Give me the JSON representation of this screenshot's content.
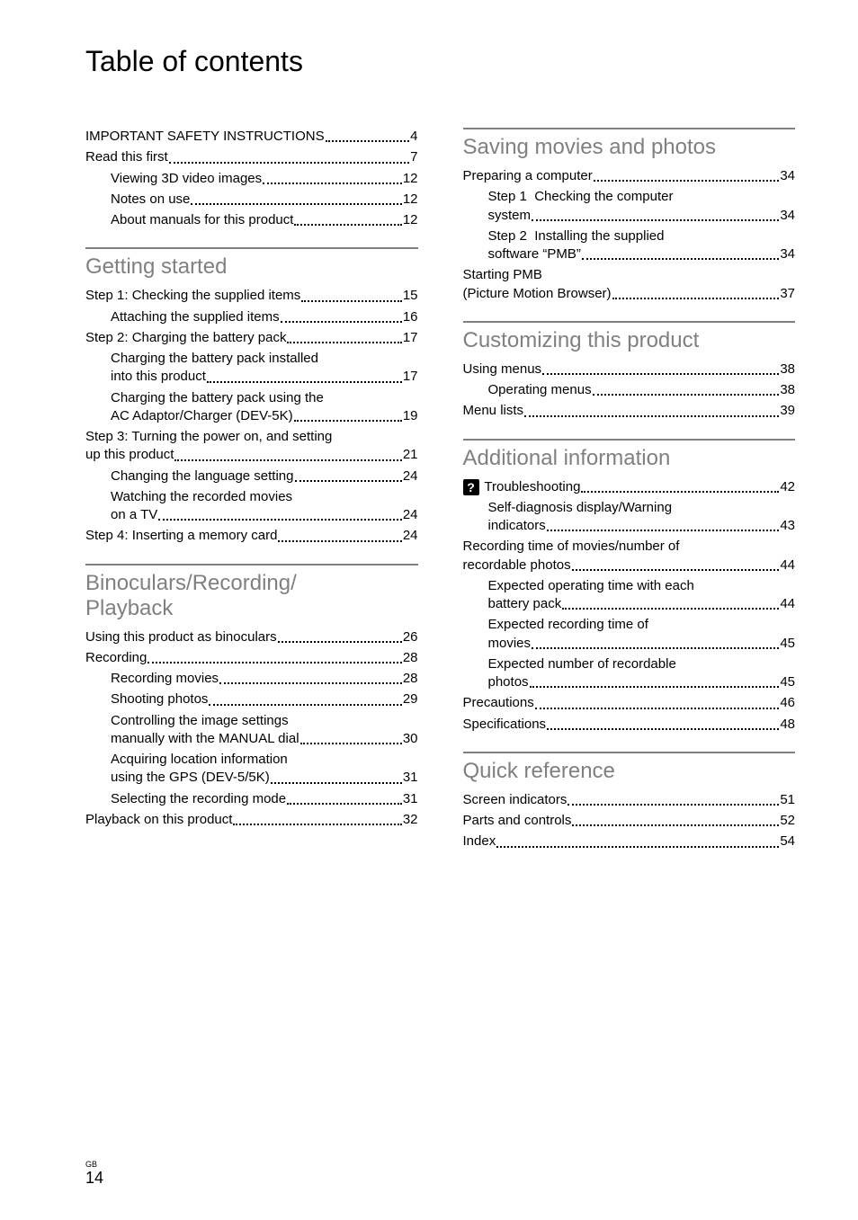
{
  "title": "Table of contents",
  "footer": {
    "label": "GB",
    "page": "14"
  },
  "col_left": {
    "top_entries": [
      {
        "label": "IMPORTANT SAFETY INSTRUCTIONS",
        "page": "4",
        "indent": 0
      },
      {
        "label": "Read this first",
        "page": "7",
        "indent": 0
      },
      {
        "label": "Viewing 3D video images",
        "page": "12",
        "indent": 1
      },
      {
        "label": "Notes on use",
        "page": "12",
        "indent": 1
      },
      {
        "label": "About manuals for this product",
        "page": "12",
        "indent": 1
      }
    ],
    "sections": [
      {
        "heading": "Getting started",
        "entries": [
          {
            "type": "single",
            "label": "Step 1: Checking the supplied items",
            "page": "15",
            "indent": 0
          },
          {
            "type": "single",
            "label": "Attaching the supplied items",
            "page": "16",
            "indent": 1
          },
          {
            "type": "single",
            "label": "Step 2: Charging the battery pack",
            "page": "17",
            "indent": 0
          },
          {
            "type": "multi",
            "line1": "Charging the battery pack installed",
            "label": "into this product",
            "page": "17",
            "indent": 1
          },
          {
            "type": "multi",
            "line1": "Charging the battery pack using the",
            "label": "AC Adaptor/Charger (DEV-5K)",
            "page": "19",
            "indent": 1
          },
          {
            "type": "multi",
            "line1": "Step 3: Turning the power on, and setting",
            "label": "up this product",
            "page": "21",
            "indent": 0
          },
          {
            "type": "single",
            "label": "Changing the language setting",
            "page": "24",
            "indent": 1
          },
          {
            "type": "multi",
            "line1": "Watching the recorded movies",
            "label": "on a TV",
            "page": "24",
            "indent": 1
          },
          {
            "type": "single",
            "label": "Step 4: Inserting a memory card",
            "page": "24",
            "indent": 0
          }
        ]
      },
      {
        "heading": "Binoculars/Recording/ Playback",
        "entries": [
          {
            "type": "single",
            "label": "Using this product as binoculars",
            "page": "26",
            "indent": 0
          },
          {
            "type": "single",
            "label": "Recording",
            "page": "28",
            "indent": 0
          },
          {
            "type": "single",
            "label": "Recording movies",
            "page": "28",
            "indent": 1
          },
          {
            "type": "single",
            "label": "Shooting photos",
            "page": "29",
            "indent": 1
          },
          {
            "type": "multi",
            "line1": "Controlling the image settings",
            "label": "manually with the MANUAL dial",
            "page": "30",
            "indent": 1
          },
          {
            "type": "multi",
            "line1": "Acquiring location information",
            "label": "using the GPS (DEV-5/5K)",
            "page": "31",
            "indent": 1
          },
          {
            "type": "single",
            "label": "Selecting the recording mode",
            "page": "31",
            "indent": 1
          },
          {
            "type": "single",
            "label": "Playback on this product",
            "page": "32",
            "indent": 0
          }
        ]
      }
    ]
  },
  "col_right": {
    "sections": [
      {
        "heading": "Saving movies and photos",
        "first": true,
        "entries": [
          {
            "type": "single",
            "label": "Preparing a computer",
            "page": "34",
            "indent": 0
          },
          {
            "type": "multi",
            "line1": "Step 1  Checking the computer",
            "label": "system",
            "page": "34",
            "indent": 1
          },
          {
            "type": "multi",
            "line1": "Step 2  Installing the supplied",
            "label": "software “PMB”",
            "page": "34",
            "indent": 1
          },
          {
            "type": "multi",
            "line1": "Starting PMB",
            "label": "(Picture Motion Browser)",
            "page": "37",
            "indent": 0
          }
        ]
      },
      {
        "heading": "Customizing this product",
        "entries": [
          {
            "type": "single",
            "label": "Using menus",
            "page": "38",
            "indent": 0
          },
          {
            "type": "single",
            "label": "Operating menus",
            "page": "38",
            "indent": 1
          },
          {
            "type": "single",
            "label": "Menu lists",
            "page": "39",
            "indent": 0
          }
        ]
      },
      {
        "heading": "Additional information",
        "entries": [
          {
            "type": "single",
            "label": "Troubleshooting",
            "page": "42",
            "indent": 0,
            "icon": "?"
          },
          {
            "type": "multi",
            "line1": "Self-diagnosis display/Warning",
            "label": "indicators",
            "page": "43",
            "indent": 1
          },
          {
            "type": "multi",
            "line1": "Recording time of movies/number of",
            "label": "recordable photos",
            "page": "44",
            "indent": 0
          },
          {
            "type": "multi",
            "line1": "Expected operating time with each",
            "label": "battery pack",
            "page": "44",
            "indent": 1
          },
          {
            "type": "multi",
            "line1": "Expected recording time of",
            "label": "movies",
            "page": "45",
            "indent": 1
          },
          {
            "type": "multi",
            "line1": "Expected number of recordable",
            "label": "photos",
            "page": "45",
            "indent": 1
          },
          {
            "type": "single",
            "label": "Precautions",
            "page": "46",
            "indent": 0
          },
          {
            "type": "single",
            "label": "Specifications",
            "page": "48",
            "indent": 0
          }
        ]
      },
      {
        "heading": "Quick reference",
        "entries": [
          {
            "type": "single",
            "label": "Screen indicators",
            "page": "51",
            "indent": 0
          },
          {
            "type": "single",
            "label": "Parts and controls",
            "page": "52",
            "indent": 0
          },
          {
            "type": "single",
            "label": "Index",
            "page": "54",
            "indent": 0
          }
        ]
      }
    ]
  }
}
